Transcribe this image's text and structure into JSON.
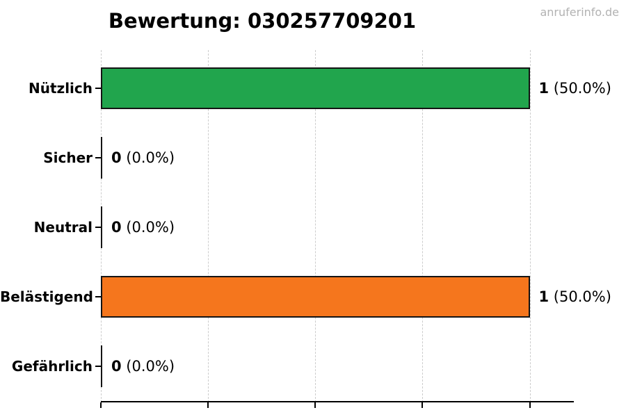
{
  "title": "Bewertung: 030257709201",
  "watermark": "anruferinfo.de",
  "colors": {
    "positive_bar": "#21a54d",
    "negative_bar": "#f5761d",
    "bar_outline": "#141414",
    "gridline": "#cccccc",
    "axis": "#000000",
    "watermark": "#b2b2b2",
    "text": "#000000"
  },
  "chart_data": {
    "type": "bar",
    "orientation": "horizontal",
    "title": "Bewertung: 030257709201",
    "xlabel": "",
    "ylabel": "",
    "categories": [
      "Nützlich",
      "Sicher",
      "Neutral",
      "Belästigend",
      "Gefährlich"
    ],
    "values": [
      1,
      0,
      0,
      1,
      0
    ],
    "percentages": [
      "50.0%",
      "0.0%",
      "0.0%",
      "50.0%",
      "0.0%"
    ],
    "annotations": [
      "1 (50.0%)",
      "0 (0.0%)",
      "0 (0.0%)",
      "1 (50.0%)",
      "0 (0.0%)"
    ],
    "bar_colors": [
      "#21a54d",
      null,
      null,
      "#f5761d",
      null
    ],
    "xlim": [
      0,
      1.103
    ],
    "xticks": [
      0,
      0.25,
      0.5,
      0.75,
      1.0
    ],
    "xtick_labels_visible": false,
    "grid": "vertical-dashed",
    "legend": "none"
  }
}
